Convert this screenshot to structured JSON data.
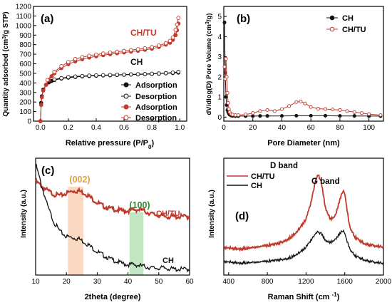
{
  "figure": {
    "panels": [
      {
        "id": "a",
        "label": "(a)"
      },
      {
        "id": "b",
        "label": "(b)"
      },
      {
        "id": "c",
        "label": "(c)"
      },
      {
        "id": "d",
        "label": "(d)"
      }
    ]
  },
  "colors": {
    "ch": "#111111",
    "chtu": "#c0392b",
    "band002": "#f6c9a6",
    "band100": "#8fd08f",
    "label002": "#e0a040",
    "label100": "#2e8b2e"
  },
  "chart_data": [
    {
      "id": "a",
      "type": "line",
      "xlabel": "Relative pressure (P/P0)",
      "ylabel": "Quantity adsorbed (cm3/g STP)",
      "xlim": [
        -0.05,
        1.05
      ],
      "ylim": [
        0,
        1200
      ],
      "xticks": [
        0.0,
        0.2,
        0.4,
        0.6,
        0.8,
        1.0
      ],
      "yticks": [
        0,
        100,
        200,
        300,
        400,
        500,
        600,
        700,
        800,
        900,
        1000,
        1100,
        1200
      ],
      "annotations": [
        "CH/TU",
        "CH"
      ],
      "legend": [
        "Adsorption",
        "Desorption",
        "Adsorption",
        "Desorption"
      ],
      "legend_position": "bottom-right",
      "series": [
        {
          "name": "CH Adsorption",
          "color": "#111111",
          "marker": "filled",
          "x": [
            0.0,
            0.005,
            0.01,
            0.02,
            0.04,
            0.06,
            0.08,
            0.1,
            0.15,
            0.2,
            0.25,
            0.3,
            0.35,
            0.4,
            0.45,
            0.5,
            0.55,
            0.6,
            0.65,
            0.7,
            0.75,
            0.8,
            0.85,
            0.9,
            0.95,
            0.99
          ],
          "y": [
            0,
            190,
            260,
            330,
            380,
            405,
            420,
            430,
            445,
            455,
            462,
            468,
            472,
            475,
            478,
            480,
            483,
            485,
            487,
            489,
            491,
            494,
            497,
            500,
            503,
            508
          ]
        },
        {
          "name": "CH Desorption",
          "color": "#111111",
          "marker": "open",
          "x": [
            0.99,
            0.95,
            0.9,
            0.85,
            0.8,
            0.75,
            0.7,
            0.65,
            0.6,
            0.55,
            0.5,
            0.45,
            0.4,
            0.35,
            0.3,
            0.25,
            0.2,
            0.15,
            0.1
          ],
          "y": [
            515,
            508,
            502,
            499,
            496,
            493,
            491,
            489,
            487,
            485,
            483,
            481,
            479,
            476,
            472,
            467,
            460,
            450,
            436
          ]
        },
        {
          "name": "CH/TU Adsorption",
          "color": "#c0392b",
          "marker": "filled",
          "x": [
            0.0,
            0.005,
            0.01,
            0.02,
            0.04,
            0.06,
            0.08,
            0.1,
            0.15,
            0.2,
            0.25,
            0.3,
            0.35,
            0.4,
            0.45,
            0.5,
            0.55,
            0.6,
            0.65,
            0.7,
            0.75,
            0.8,
            0.85,
            0.9,
            0.93,
            0.95,
            0.97,
            0.98,
            0.99
          ],
          "y": [
            0,
            170,
            250,
            320,
            380,
            430,
            470,
            500,
            555,
            595,
            625,
            648,
            665,
            678,
            690,
            700,
            710,
            718,
            727,
            736,
            746,
            758,
            775,
            800,
            820,
            850,
            900,
            950,
            1020
          ]
        },
        {
          "name": "CH/TU Desorption",
          "color": "#c0392b",
          "marker": "open",
          "x": [
            0.99,
            0.98,
            0.97,
            0.95,
            0.93,
            0.9,
            0.85,
            0.8,
            0.75,
            0.7,
            0.65,
            0.6,
            0.55,
            0.5,
            0.45,
            0.4,
            0.35,
            0.3,
            0.25,
            0.2,
            0.15,
            0.1,
            0.05
          ],
          "y": [
            1080,
            1010,
            955,
            875,
            840,
            815,
            790,
            774,
            762,
            752,
            743,
            734,
            726,
            717,
            707,
            696,
            684,
            670,
            650,
            618,
            575,
            515,
            430
          ]
        }
      ]
    },
    {
      "id": "b",
      "type": "line",
      "xlabel": "Pore Diameter (nm)",
      "ylabel": "dV/dlog(D) Pore Volume (cm3/g)",
      "xlim": [
        0,
        110
      ],
      "ylim": [
        -0.2,
        5.5
      ],
      "xticks": [
        0,
        20,
        40,
        60,
        80,
        100
      ],
      "yticks": [
        0,
        1,
        2,
        3,
        4,
        5
      ],
      "legend": [
        "CH",
        "CH/TU"
      ],
      "legend_position": "top-right",
      "series": [
        {
          "name": "CH",
          "color": "#111111",
          "x": [
            0.5,
            1,
            1.5,
            2,
            2.5,
            3,
            3.5,
            4,
            5,
            6,
            8,
            10,
            15,
            20,
            25,
            30,
            40,
            50,
            60,
            70,
            80,
            90,
            100,
            108
          ],
          "y": [
            4.7,
            2.2,
            1.0,
            0.6,
            0.35,
            0.25,
            0.18,
            0.12,
            0.08,
            0.06,
            0.05,
            0.05,
            0.05,
            0.05,
            0.06,
            0.06,
            0.06,
            0.07,
            0.07,
            0.07,
            0.06,
            0.06,
            0.05,
            0.05
          ]
        },
        {
          "name": "CH/TU",
          "color": "#c0392b",
          "x": [
            0.5,
            1,
            1.5,
            2,
            2.5,
            3,
            3.5,
            4,
            5,
            6,
            8,
            10,
            15,
            20,
            25,
            30,
            35,
            40,
            45,
            50,
            53,
            56,
            60,
            65,
            70,
            75,
            80,
            85,
            90,
            95,
            100,
            108
          ],
          "y": [
            2.5,
            1.9,
            2.9,
            2.0,
            1.2,
            0.7,
            0.4,
            0.25,
            0.15,
            0.12,
            0.1,
            0.1,
            0.13,
            0.2,
            0.3,
            0.35,
            0.3,
            0.4,
            0.55,
            0.75,
            0.78,
            0.68,
            0.5,
            0.42,
            0.4,
            0.38,
            0.35,
            0.3,
            0.25,
            0.2,
            0.15,
            0.1
          ]
        }
      ]
    },
    {
      "id": "c",
      "type": "line",
      "xlabel": "2theta (degree)",
      "ylabel": "Intensity (a.u.)",
      "xlim": [
        10,
        60
      ],
      "ylim": [
        0,
        1
      ],
      "xticks": [
        10,
        20,
        30,
        40,
        50,
        60
      ],
      "annotations": [
        "(002)",
        "(100)",
        "CH/TU",
        "CH"
      ],
      "bands": [
        {
          "label": "(002)",
          "range": [
            20.5,
            25.5
          ]
        },
        {
          "label": "(100)",
          "range": [
            40.5,
            45
          ]
        }
      ],
      "series": [
        {
          "name": "CH/TU",
          "color": "#c0392b",
          "x": [
            10,
            12,
            14,
            16,
            18,
            20,
            22,
            24,
            26,
            28,
            30,
            32,
            34,
            36,
            38,
            40,
            42,
            44,
            46,
            48,
            50,
            52,
            55,
            60
          ],
          "y": [
            0.8,
            0.76,
            0.72,
            0.69,
            0.68,
            0.7,
            0.72,
            0.72,
            0.7,
            0.66,
            0.62,
            0.59,
            0.57,
            0.56,
            0.55,
            0.55,
            0.56,
            0.56,
            0.54,
            0.52,
            0.51,
            0.5,
            0.5,
            0.5
          ]
        },
        {
          "name": "CH",
          "color": "#111111",
          "x": [
            10,
            12,
            14,
            16,
            18,
            20,
            22,
            24,
            26,
            28,
            30,
            32,
            34,
            36,
            38,
            40,
            42,
            44,
            46,
            48,
            50,
            52,
            55,
            60
          ],
          "y": [
            0.95,
            0.76,
            0.58,
            0.45,
            0.37,
            0.33,
            0.32,
            0.31,
            0.28,
            0.24,
            0.2,
            0.17,
            0.14,
            0.12,
            0.1,
            0.09,
            0.09,
            0.08,
            0.07,
            0.06,
            0.06,
            0.06,
            0.05,
            0.05
          ]
        }
      ]
    },
    {
      "id": "d",
      "type": "line",
      "xlabel": "Raman Shift (cm-1)",
      "ylabel": "Intensity (a.u.)",
      "xlim": [
        350,
        2000
      ],
      "ylim": [
        0,
        1
      ],
      "xticks": [
        400,
        800,
        1200,
        1600,
        2000
      ],
      "annotations": [
        "D band",
        "G band"
      ],
      "legend": [
        "CH/TU",
        "CH"
      ],
      "legend_position": "top-left",
      "series": [
        {
          "name": "CH/TU",
          "color": "#c0392b",
          "x": [
            350,
            500,
            700,
            900,
            1000,
            1100,
            1200,
            1250,
            1300,
            1330,
            1360,
            1400,
            1450,
            1500,
            1550,
            1580,
            1600,
            1620,
            1650,
            1700,
            1800,
            1900,
            2000
          ],
          "y": [
            0.24,
            0.22,
            0.24,
            0.27,
            0.3,
            0.36,
            0.48,
            0.62,
            0.82,
            0.86,
            0.78,
            0.58,
            0.48,
            0.5,
            0.65,
            0.72,
            0.7,
            0.58,
            0.42,
            0.33,
            0.27,
            0.25,
            0.24
          ]
        },
        {
          "name": "CH",
          "color": "#111111",
          "x": [
            350,
            500,
            700,
            900,
            1000,
            1100,
            1200,
            1250,
            1300,
            1330,
            1360,
            1400,
            1450,
            1500,
            1550,
            1580,
            1600,
            1620,
            1650,
            1700,
            1800,
            1900,
            2000
          ],
          "y": [
            0.12,
            0.1,
            0.11,
            0.13,
            0.14,
            0.17,
            0.24,
            0.3,
            0.36,
            0.37,
            0.35,
            0.3,
            0.28,
            0.3,
            0.36,
            0.38,
            0.36,
            0.3,
            0.23,
            0.17,
            0.13,
            0.11,
            0.1
          ]
        }
      ]
    }
  ]
}
